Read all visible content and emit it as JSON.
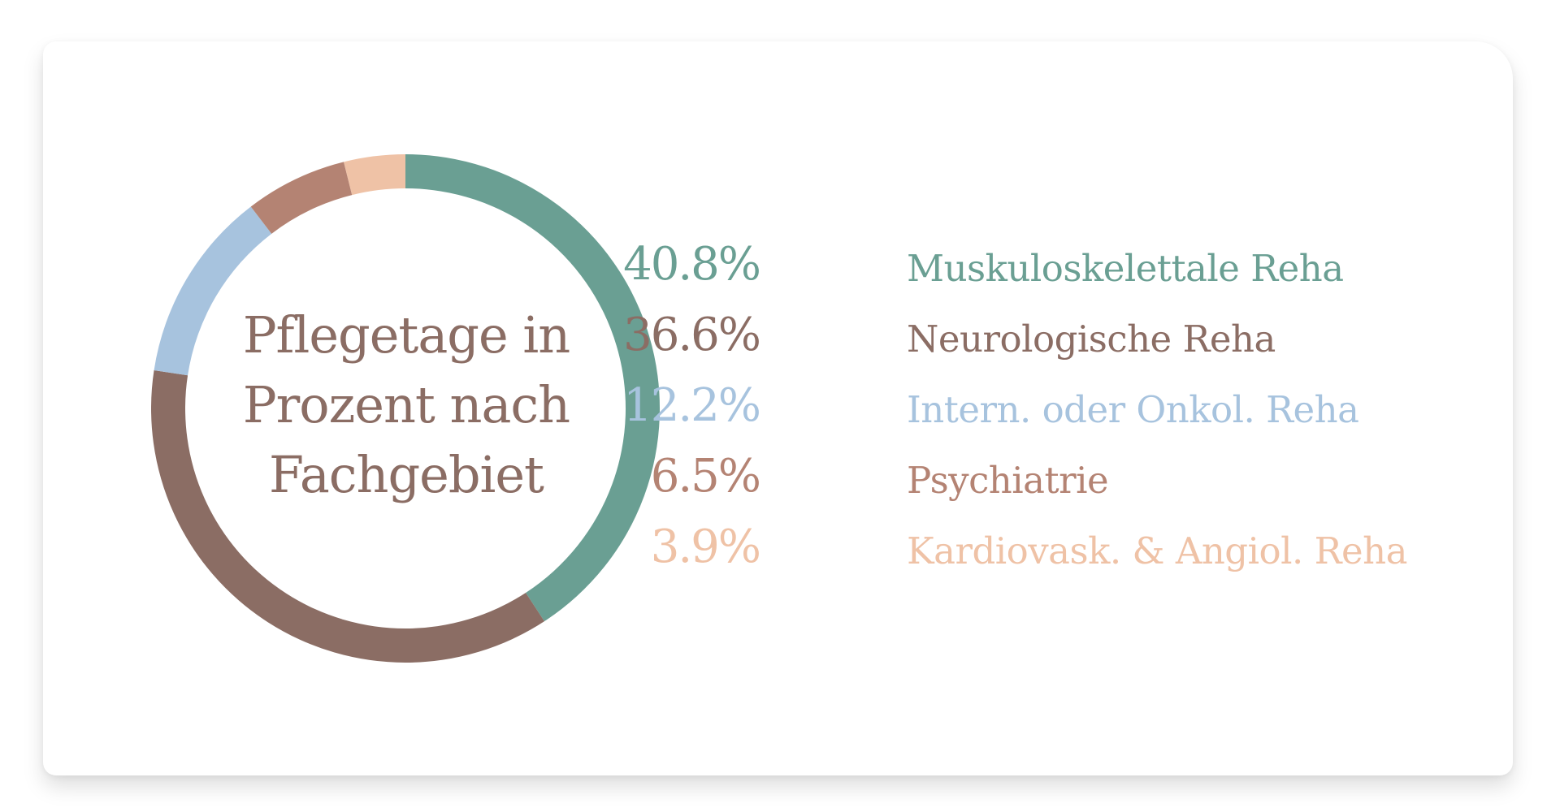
{
  "chart_data": {
    "type": "pie",
    "style": "donut",
    "title_lines": [
      "Pflegetage in",
      "Prozent nach",
      "Fachgebiet"
    ],
    "slices": [
      {
        "label": "Muskuloskelettale Reha",
        "value": 40.8,
        "value_label": "40.8%",
        "color": "#6a9f93"
      },
      {
        "label": "Neurologische Reha",
        "value": 36.6,
        "value_label": "36.6%",
        "color": "#8b6d64"
      },
      {
        "label": "Intern. oder Onkol. Reha",
        "value": 12.2,
        "value_label": "12.2%",
        "color": "#a7c3de"
      },
      {
        "label": "Psychiatrie",
        "value": 6.5,
        "value_label": "6.5%",
        "color": "#b48373"
      },
      {
        "label": "Kardiovask. & Angiol. Reha",
        "value": 3.9,
        "value_label": "3.9%",
        "color": "#efc2a6"
      }
    ],
    "legend_placement": "right"
  }
}
